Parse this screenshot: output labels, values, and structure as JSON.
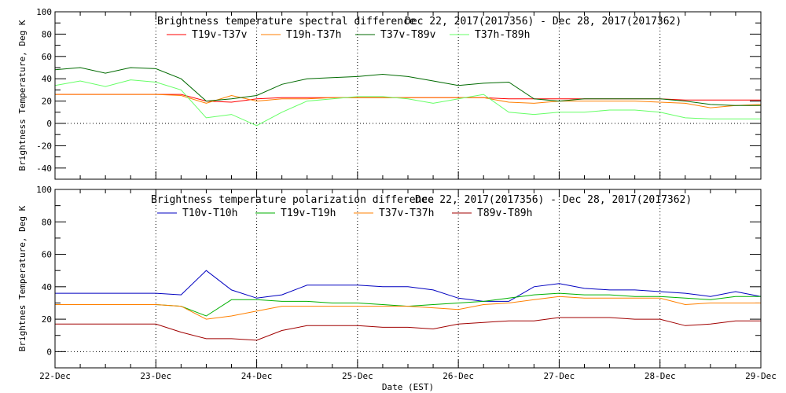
{
  "chart_data": [
    {
      "type": "line",
      "title": "Brightness temperature spectral difference",
      "date_range": "Dec 22, 2017(2017356) - Dec 28, 2017(2017362)",
      "xlabel": "",
      "ylabel": "Brightness Temperature, Deg K",
      "ylim": [
        -50,
        100
      ],
      "yticks": [
        100,
        80,
        60,
        40,
        20,
        0,
        -20,
        -40
      ],
      "xlim": [
        "2017-12-22T00:00",
        "2017-12-29T00:00"
      ],
      "grid": "dotted vertical at each day, dotted horizontal at 0",
      "legend": "top-center",
      "x": [
        "2017-12-22T00:00",
        "2017-12-22T06:00",
        "2017-12-22T12:00",
        "2017-12-22T18:00",
        "2017-12-23T00:00",
        "2017-12-23T06:00",
        "2017-12-23T12:00",
        "2017-12-23T18:00",
        "2017-12-24T00:00",
        "2017-12-24T06:00",
        "2017-12-24T12:00",
        "2017-12-24T18:00",
        "2017-12-25T00:00",
        "2017-12-25T06:00",
        "2017-12-25T12:00",
        "2017-12-25T18:00",
        "2017-12-26T00:00",
        "2017-12-26T06:00",
        "2017-12-26T12:00",
        "2017-12-26T18:00",
        "2017-12-27T00:00",
        "2017-12-27T06:00",
        "2017-12-27T12:00",
        "2017-12-27T18:00",
        "2017-12-28T00:00",
        "2017-12-28T06:00",
        "2017-12-28T12:00",
        "2017-12-28T18:00",
        "2017-12-29T00:00"
      ],
      "series": [
        {
          "name": "T19v-T37v",
          "color": "#ff0000",
          "values": [
            26,
            26,
            26,
            26,
            26,
            26,
            20,
            19,
            22,
            23,
            23,
            23,
            23,
            23,
            23,
            23,
            23,
            23,
            22,
            22,
            22,
            22,
            22,
            22,
            22,
            21,
            21,
            21,
            21
          ]
        },
        {
          "name": "T19h-T37h",
          "color": "#ff7f00",
          "values": [
            26,
            26,
            26,
            26,
            26,
            25,
            18,
            25,
            20,
            22,
            22,
            23,
            23,
            23,
            23,
            23,
            23,
            23,
            19,
            18,
            20,
            20,
            20,
            20,
            19,
            18,
            14,
            16,
            17
          ]
        },
        {
          "name": "T37v-T89v",
          "color": "#006a00",
          "values": [
            48,
            50,
            45,
            50,
            49,
            40,
            20,
            22,
            25,
            35,
            40,
            41,
            42,
            44,
            42,
            38,
            34,
            36,
            37,
            22,
            20,
            22,
            22,
            22,
            22,
            20,
            17,
            16,
            16
          ]
        },
        {
          "name": "T37h-T89h",
          "color": "#66ff66",
          "values": [
            34,
            38,
            33,
            39,
            37,
            30,
            5,
            8,
            -2,
            10,
            20,
            22,
            24,
            24,
            22,
            18,
            22,
            26,
            10,
            8,
            10,
            10,
            12,
            12,
            10,
            5,
            4,
            4,
            4
          ]
        }
      ]
    },
    {
      "type": "line",
      "title": "Brightness temperature polarization difference",
      "date_range": "Dec 22, 2017(2017356) - Dec 28, 2017(2017362)",
      "xlabel": "Date (EST)",
      "ylabel": "Brightnes Temperature, Deg K",
      "ylim": [
        -10,
        100
      ],
      "yticks": [
        100,
        80,
        60,
        40,
        20,
        0
      ],
      "xlim": [
        "2017-12-22T00:00",
        "2017-12-29T00:00"
      ],
      "xticks": [
        "22-Dec",
        "23-Dec",
        "24-Dec",
        "25-Dec",
        "26-Dec",
        "27-Dec",
        "28-Dec",
        "29-Dec"
      ],
      "grid": "dotted vertical at each day, dotted horizontal at 0",
      "legend": "top-center",
      "x": [
        "2017-12-22T00:00",
        "2017-12-22T06:00",
        "2017-12-22T12:00",
        "2017-12-22T18:00",
        "2017-12-23T00:00",
        "2017-12-23T06:00",
        "2017-12-23T12:00",
        "2017-12-23T18:00",
        "2017-12-24T00:00",
        "2017-12-24T06:00",
        "2017-12-24T12:00",
        "2017-12-24T18:00",
        "2017-12-25T00:00",
        "2017-12-25T06:00",
        "2017-12-25T12:00",
        "2017-12-25T18:00",
        "2017-12-26T00:00",
        "2017-12-26T06:00",
        "2017-12-26T12:00",
        "2017-12-26T18:00",
        "2017-12-27T00:00",
        "2017-12-27T06:00",
        "2017-12-27T12:00",
        "2017-12-27T18:00",
        "2017-12-28T00:00",
        "2017-12-28T06:00",
        "2017-12-28T12:00",
        "2017-12-28T18:00",
        "2017-12-29T00:00"
      ],
      "series": [
        {
          "name": "T10v-T10h",
          "color": "#0000c0",
          "values": [
            36,
            36,
            36,
            36,
            36,
            35,
            50,
            38,
            33,
            35,
            41,
            41,
            41,
            40,
            40,
            38,
            33,
            31,
            31,
            40,
            42,
            39,
            38,
            38,
            37,
            36,
            34,
            37,
            34
          ]
        },
        {
          "name": "T19v-T19h",
          "color": "#00b000",
          "values": [
            29,
            29,
            29,
            29,
            29,
            28,
            22,
            32,
            32,
            31,
            31,
            30,
            30,
            29,
            28,
            29,
            30,
            31,
            33,
            35,
            36,
            35,
            35,
            34,
            34,
            33,
            32,
            34,
            34
          ]
        },
        {
          "name": "T37v-T37h",
          "color": "#ff8000",
          "values": [
            29,
            29,
            29,
            29,
            29,
            28,
            20,
            22,
            25,
            28,
            28,
            28,
            28,
            28,
            28,
            27,
            26,
            29,
            30,
            32,
            34,
            33,
            33,
            33,
            33,
            29,
            30,
            30,
            30
          ]
        },
        {
          "name": "T89v-T89h",
          "color": "#a00000",
          "values": [
            17,
            17,
            17,
            17,
            17,
            12,
            8,
            8,
            7,
            13,
            16,
            16,
            16,
            15,
            15,
            14,
            17,
            18,
            19,
            19,
            21,
            21,
            21,
            20,
            20,
            16,
            17,
            19,
            19
          ]
        }
      ]
    }
  ]
}
